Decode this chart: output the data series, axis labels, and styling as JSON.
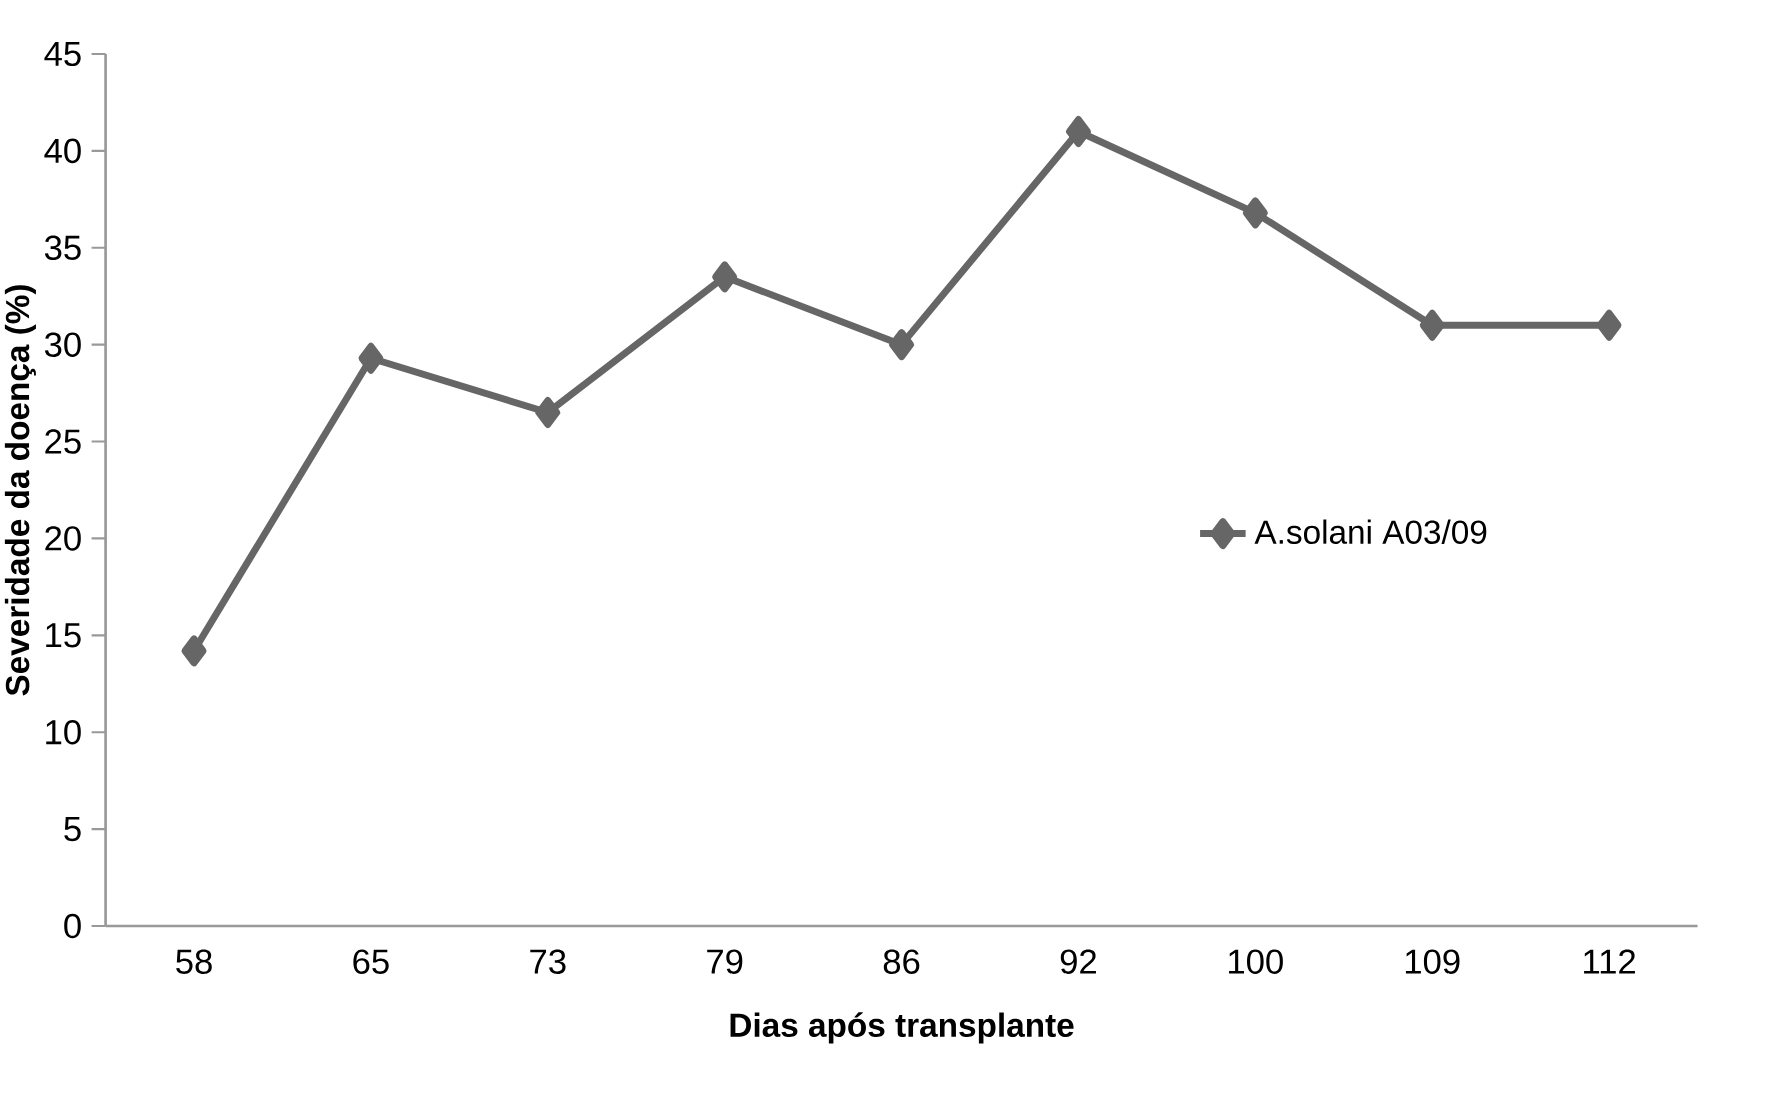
{
  "chart_data": {
    "type": "line",
    "xlabel": "Dias após transplante",
    "ylabel": "Severidade da doença (%)",
    "categories": [
      "58",
      "65",
      "73",
      "79",
      "86",
      "92",
      "100",
      "109",
      "112"
    ],
    "series": [
      {
        "name": "A.solani A03/09",
        "color": "#666666",
        "values": [
          14.2,
          29.3,
          26.5,
          33.5,
          30.0,
          41.0,
          36.8,
          31.0,
          31.0
        ]
      }
    ],
    "ylim": [
      0,
      45
    ],
    "yticks": [
      0,
      5,
      10,
      15,
      20,
      25,
      30,
      35,
      40,
      45
    ],
    "grid": false,
    "legend": "right",
    "marker": "diamond",
    "line_style": "solid"
  }
}
